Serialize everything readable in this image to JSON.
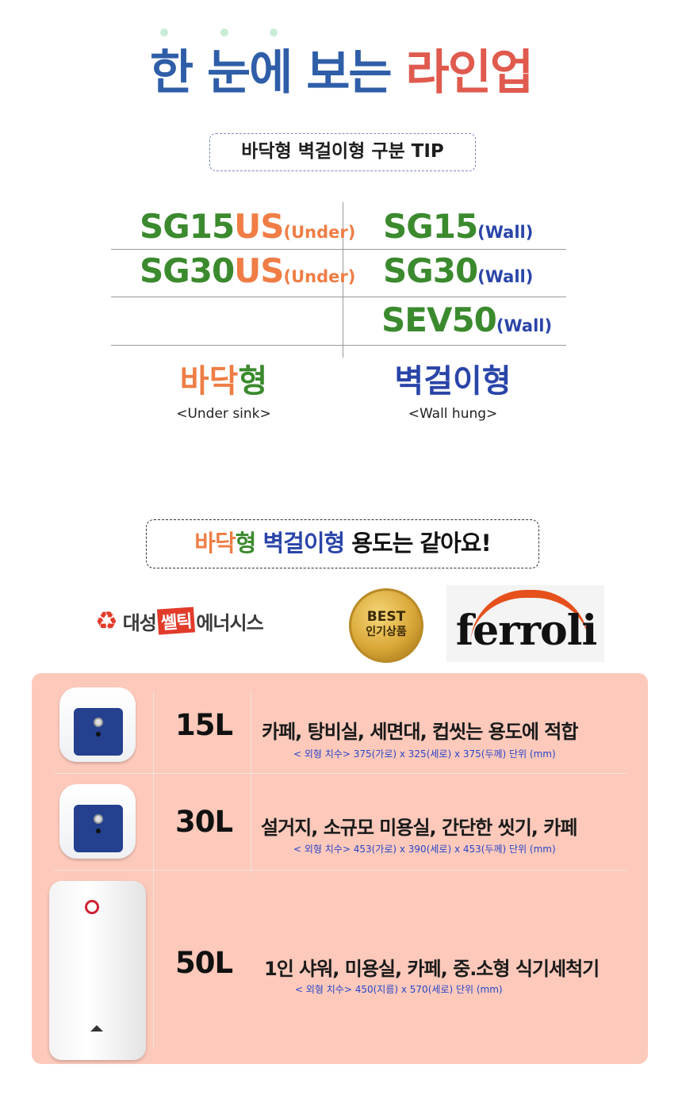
{
  "header": {
    "title_part1": "한 눈에 보는",
    "title_part2": "라인업",
    "tip_label": "바닥형 벽걸이형 구분 TIP"
  },
  "models": {
    "under": [
      {
        "base": "SG15",
        "suffix": "US",
        "tag": "(Under)"
      },
      {
        "base": "SG30",
        "suffix": "US",
        "tag": "(Under)"
      }
    ],
    "wall": [
      {
        "base": "SG15",
        "tag": "(Wall)"
      },
      {
        "base": "SG30",
        "tag": "(Wall)"
      },
      {
        "base": "SEV50",
        "tag": "(Wall)"
      }
    ]
  },
  "types": {
    "under_part1": "바닥",
    "under_part2": "형",
    "under_sub": "<Under sink>",
    "wall_label": "벽걸이형",
    "wall_sub": "<Wall hung>"
  },
  "notice": {
    "part1": "바닥",
    "part2": "형",
    "part3": "벽걸이형",
    "part4": "용도는 같아요!"
  },
  "logos": {
    "daesung_1": "대성",
    "daesung_2": "쎌틱",
    "daesung_3": "에너시스",
    "best_1": "BEST",
    "best_2": "인기상품",
    "ferroli": "ferroli"
  },
  "lineup": [
    {
      "capacity": "15L",
      "usage": "카페, 탕비실, 세면대, 컵씻는 용도에 적합",
      "dimensions": "< 외형 치수> 375(가로) x 325(세로) x 375(두께) 단위 (mm)"
    },
    {
      "capacity": "30L",
      "usage": "설거지, 소규모 미용실, 간단한 씻기, 카페",
      "dimensions": "< 외형 치수> 453(가로) x 390(세로) x 453(두께) 단위 (mm)"
    },
    {
      "capacity": "50L",
      "usage": "1인 샤워, 미용실, 카페, 중.소형 식기세척기",
      "dimensions": "< 외형 치수> 450(지름) x 570(세로) 단위 (mm)"
    }
  ],
  "colors": {
    "title_blue": "#2f5ea8",
    "title_red": "#e05a4e",
    "model_green": "#3b8a2e",
    "model_orange": "#ef7d45",
    "model_blue": "#2a45a8",
    "panel_bg": "#fcc9bb",
    "dimension_blue": "#2a45c8"
  }
}
